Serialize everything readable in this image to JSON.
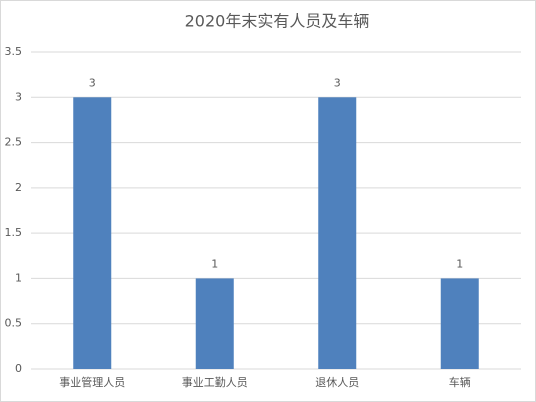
{
  "chart_data": {
    "type": "bar",
    "title": "2020年末实有人员及车辆",
    "categories": [
      "事业管理人员",
      "事业工勤人员",
      "退休人员",
      "车辆"
    ],
    "values": [
      3,
      1,
      3,
      1
    ],
    "color": "#4f81bd",
    "ylim": [
      0,
      3.5
    ],
    "yticks": [
      0,
      0.5,
      1,
      1.5,
      2,
      2.5,
      3,
      3.5
    ],
    "grid": true,
    "data_labels": true
  }
}
